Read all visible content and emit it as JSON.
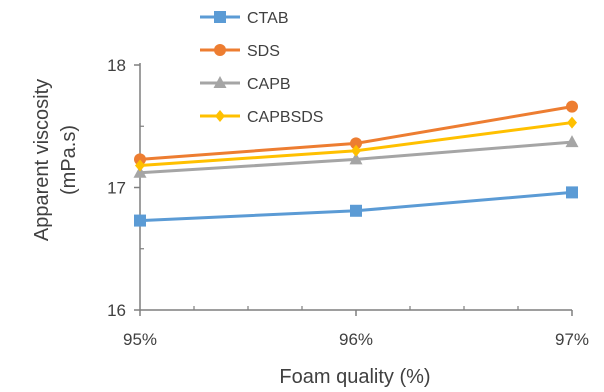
{
  "chart_data": {
    "type": "line",
    "categories": [
      "95%",
      "96%",
      "97%"
    ],
    "xlabel": "Foam quality (%)",
    "ylabel_lines": [
      "Apparent viscosity",
      "(mPa.s)"
    ],
    "ylim": [
      16,
      18
    ],
    "yticks": [
      16,
      17,
      18
    ],
    "legend_position": "top",
    "grid": false,
    "series": [
      {
        "name": "CTAB",
        "values": [
          16.73,
          16.81,
          16.96
        ],
        "color": "#5B9BD5",
        "marker": "square"
      },
      {
        "name": "SDS",
        "values": [
          17.23,
          17.36,
          17.66
        ],
        "color": "#ED7D31",
        "marker": "circle"
      },
      {
        "name": "CAPB",
        "values": [
          17.12,
          17.23,
          17.37
        ],
        "color": "#A5A5A5",
        "marker": "triangle"
      },
      {
        "name": "CAPBSDS",
        "values": [
          17.18,
          17.3,
          17.53
        ],
        "color": "#FFC000",
        "marker": "diamond"
      }
    ]
  }
}
